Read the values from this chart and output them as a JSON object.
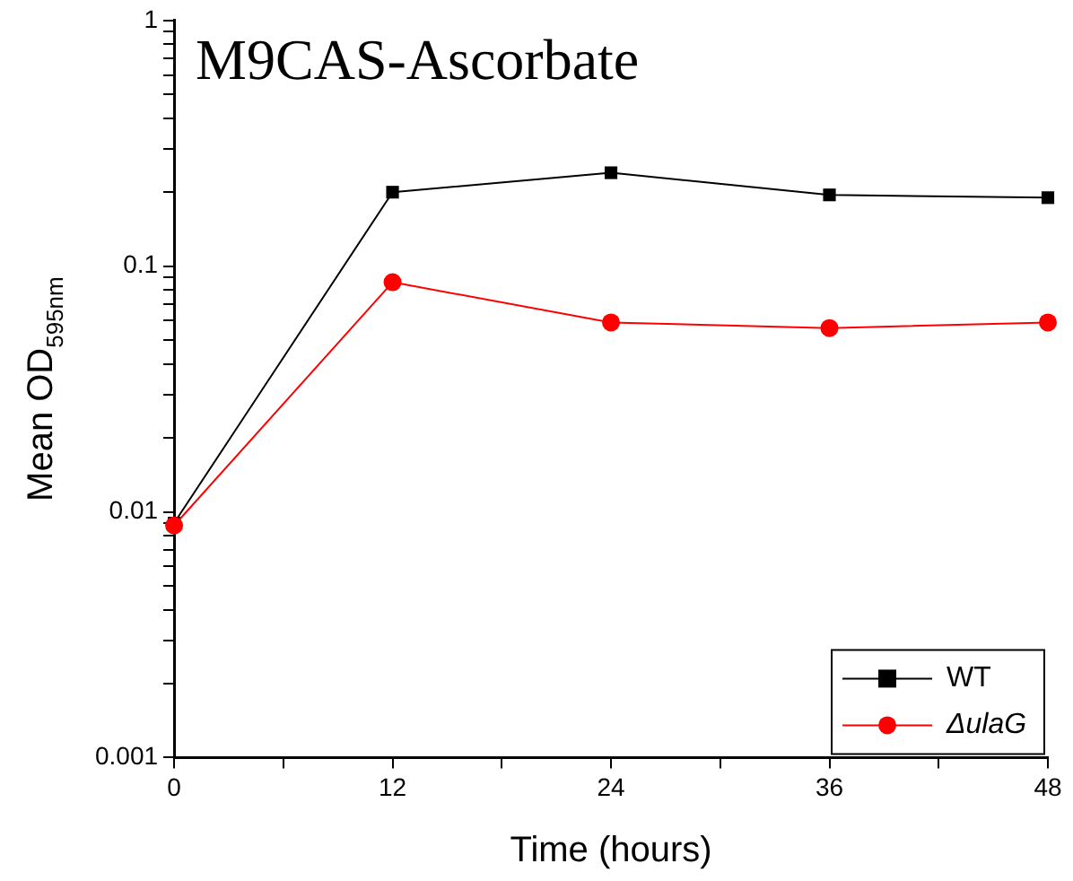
{
  "chart_data": {
    "type": "line",
    "title": "M9CAS-Ascorbate",
    "xlabel": "Time (hours)",
    "ylabel": "Mean OD$_{595nm}$",
    "x": [
      0,
      12,
      24,
      36,
      48
    ],
    "series": [
      {
        "name": "WT",
        "color": "#000000",
        "marker": "square",
        "values": [
          0.009,
          0.2,
          0.24,
          0.195,
          0.19
        ]
      },
      {
        "name": "ΔulaG",
        "color": "#ff0000",
        "marker": "circle",
        "values": [
          0.0088,
          0.086,
          0.059,
          0.056,
          0.059
        ]
      }
    ],
    "xlim": [
      0,
      48
    ],
    "xticks": [
      0,
      {
        "value": 6,
        "label": null
      },
      12,
      {
        "value": 18,
        "label": null
      },
      24,
      {
        "value": 30,
        "label": null
      },
      36,
      {
        "value": 42,
        "label": null
      },
      48
    ],
    "ylim": [
      0.001,
      1
    ],
    "log": "y",
    "yticks": [
      0.001,
      {
        "value": 0.002,
        "label": null
      },
      {
        "value": 0.003,
        "label": null
      },
      {
        "value": 0.004,
        "label": null
      },
      {
        "value": 0.005,
        "label": null
      },
      {
        "value": 0.006,
        "label": null
      },
      {
        "value": 0.007,
        "label": null
      },
      {
        "value": 0.008,
        "label": null
      },
      {
        "value": 0.009,
        "label": null
      },
      0.01,
      {
        "value": 0.02,
        "label": null
      },
      {
        "value": 0.03,
        "label": null
      },
      {
        "value": 0.04,
        "label": null
      },
      {
        "value": 0.05,
        "label": null
      },
      {
        "value": 0.06,
        "label": null
      },
      {
        "value": 0.07,
        "label": null
      },
      {
        "value": 0.08,
        "label": null
      },
      {
        "value": 0.09,
        "label": null
      },
      0.1,
      {
        "value": 0.2,
        "label": null
      },
      {
        "value": 0.3,
        "label": null
      },
      {
        "value": 0.4,
        "label": null
      },
      {
        "value": 0.5,
        "label": null
      },
      {
        "value": 0.6,
        "label": null
      },
      {
        "value": 0.7,
        "label": null
      },
      {
        "value": 0.8,
        "label": null
      },
      {
        "value": 0.9,
        "label": null
      },
      1
    ],
    "grid": false,
    "legend": "bottom right",
    "line_style": "solid"
  }
}
